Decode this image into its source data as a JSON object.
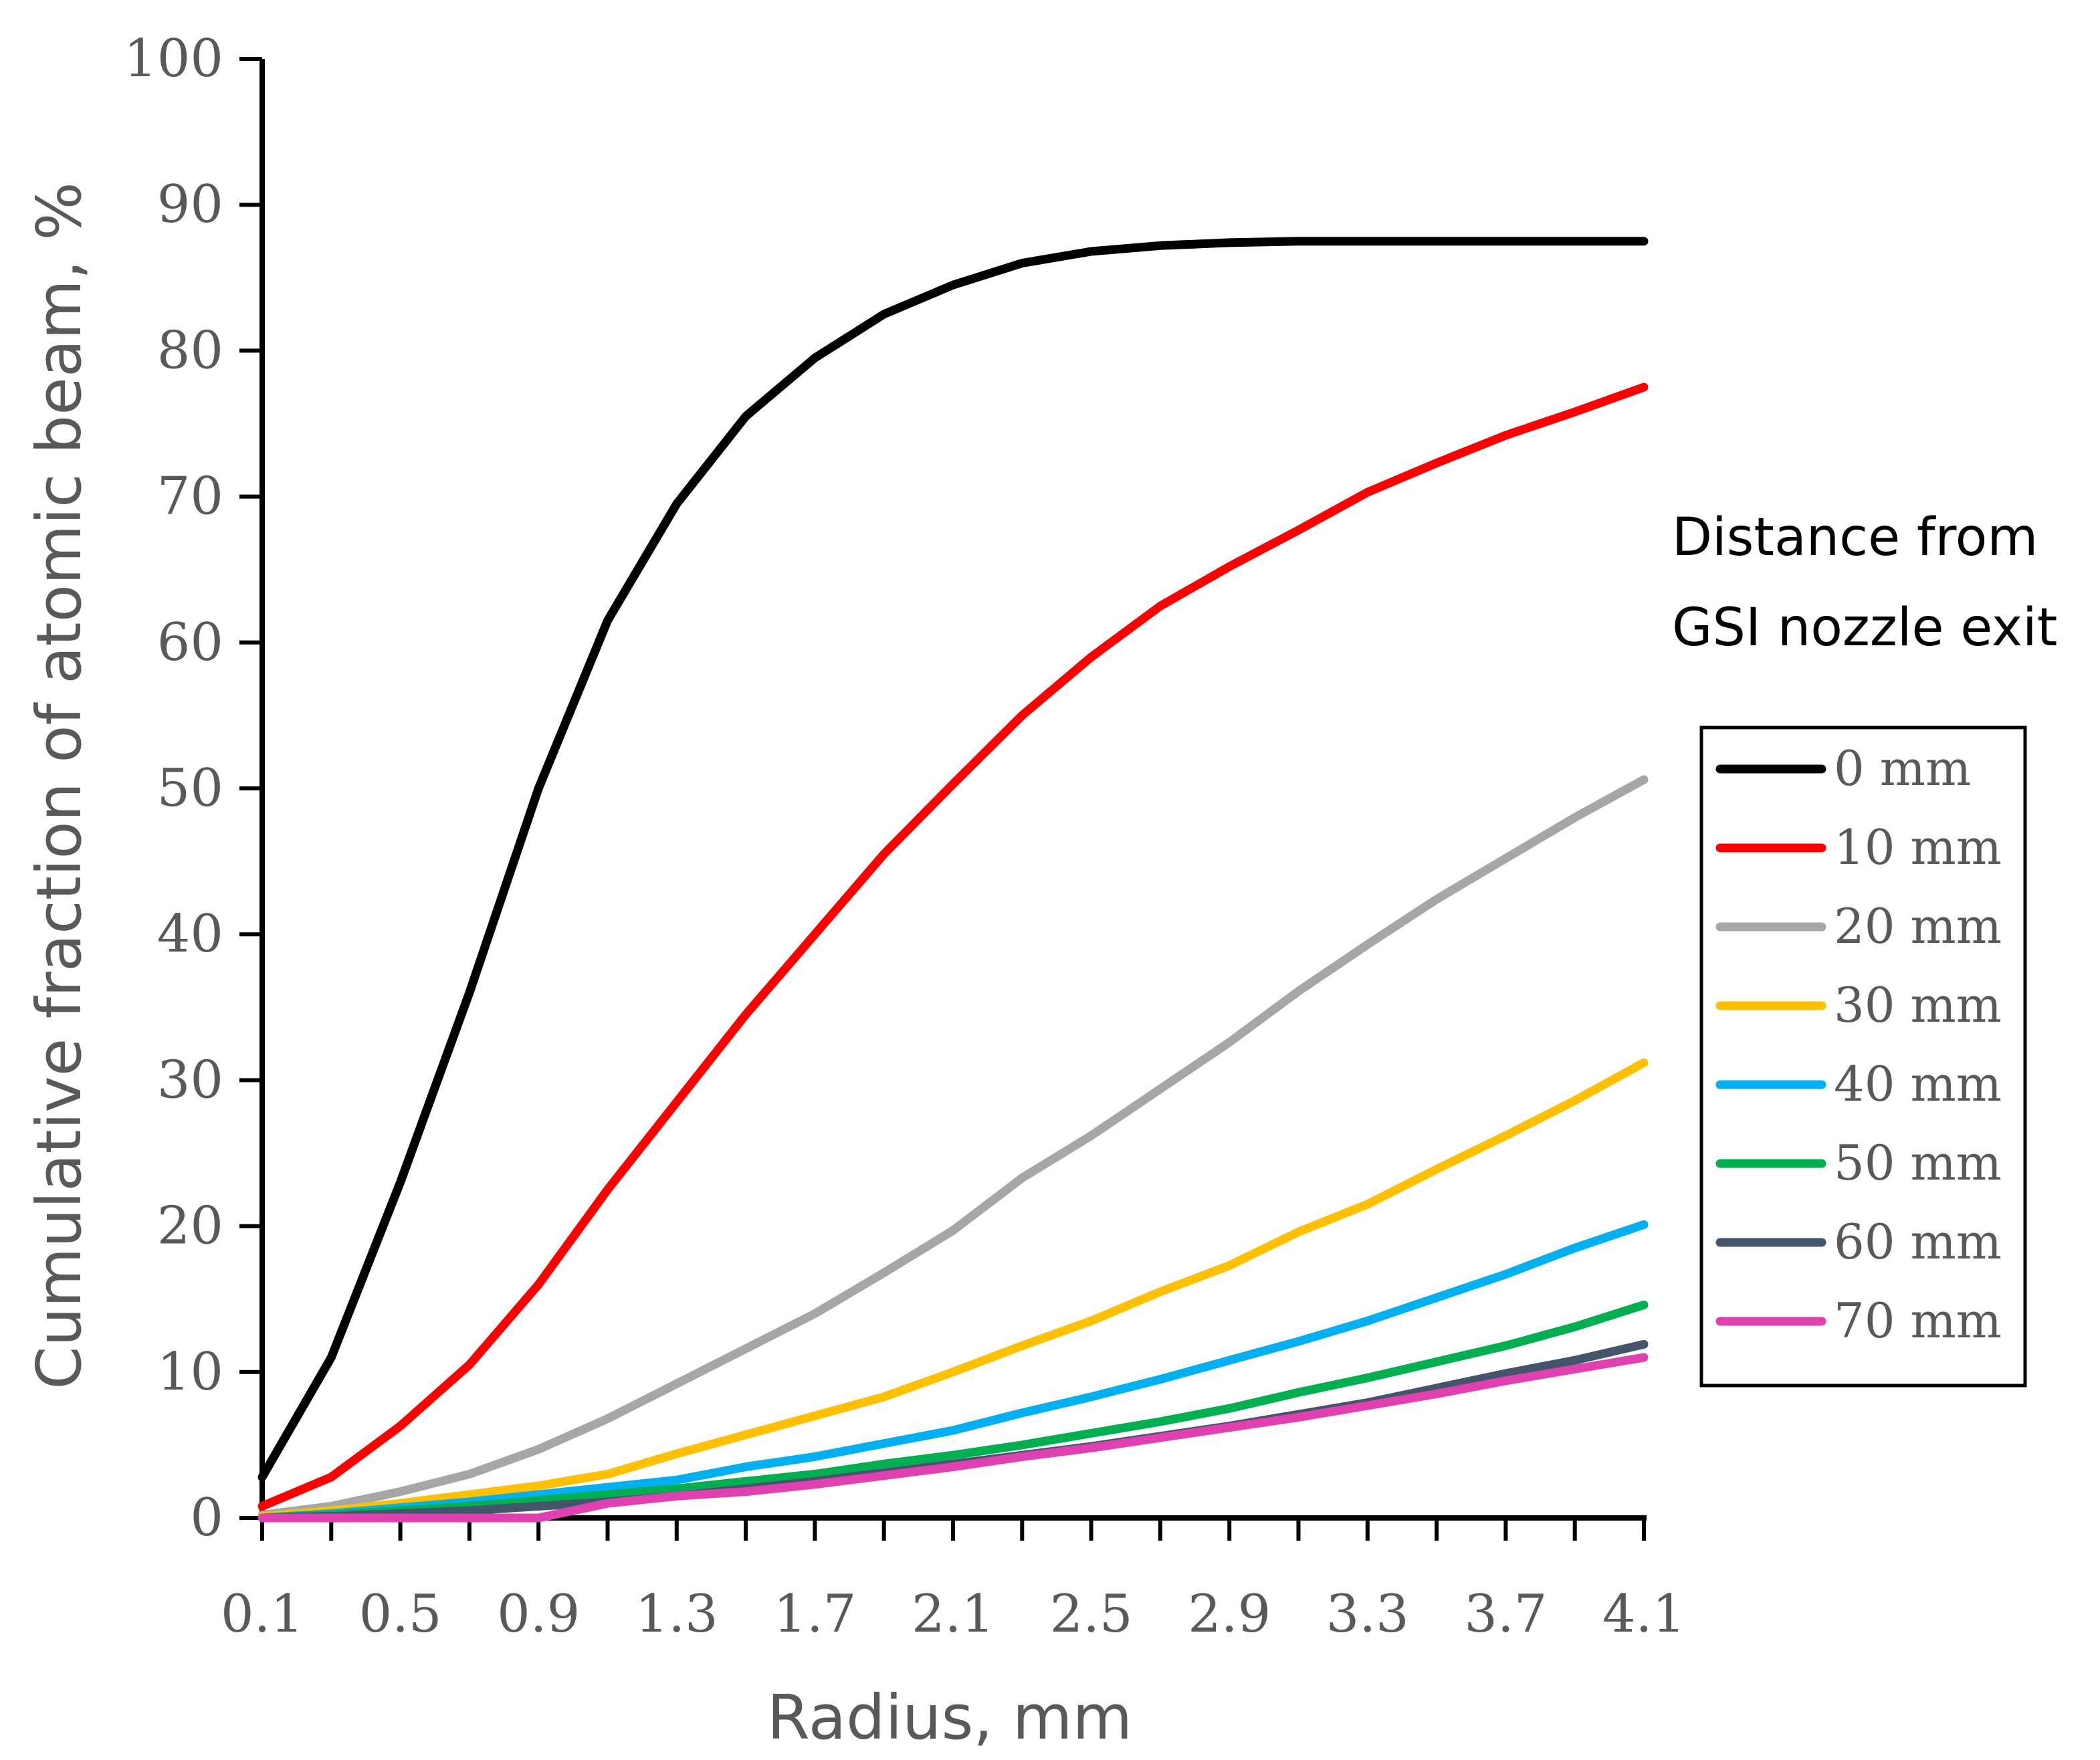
{
  "chart_data": {
    "type": "line",
    "title": "",
    "xlabel": "Radius,  mm",
    "ylabel": "Cumulative fraction of atomic beam,  %",
    "xlim": [
      0.1,
      4.1
    ],
    "ylim": [
      0,
      100
    ],
    "xticks": [
      0.1,
      0.5,
      0.9,
      1.3,
      1.7,
      2.1,
      2.5,
      2.9,
      3.3,
      3.7,
      4.1
    ],
    "xtick_labels": [
      "0.1",
      "0.5",
      "0.9",
      "1.3",
      "1.7",
      "2.1",
      "2.5",
      "2.9",
      "3.3",
      "3.7",
      "4.1"
    ],
    "yticks": [
      0,
      10,
      20,
      30,
      40,
      50,
      60,
      70,
      80,
      90,
      100
    ],
    "ytick_labels": [
      "0",
      "10",
      "20",
      "30",
      "40",
      "50",
      "60",
      "70",
      "80",
      "90",
      "100"
    ],
    "grid": false,
    "legend_title_lines": [
      "Distance from",
      "GSI nozzle exit"
    ],
    "legend_position": "right",
    "x": [
      0.1,
      0.3,
      0.5,
      0.7,
      0.9,
      1.1,
      1.3,
      1.5,
      1.7,
      1.9,
      2.1,
      2.3,
      2.5,
      2.7,
      2.9,
      3.1,
      3.3,
      3.5,
      3.7,
      3.9,
      4.1
    ],
    "series": [
      {
        "name": "0 mm",
        "color": "#000000",
        "values": [
          2.8,
          11,
          23,
          36,
          50,
          61.5,
          69.5,
          75.5,
          79.5,
          82.5,
          84.5,
          86,
          86.8,
          87.2,
          87.4,
          87.5,
          87.5,
          87.5,
          87.5,
          87.5,
          87.5
        ]
      },
      {
        "name": "10 mm",
        "color": "#ff0000",
        "values": [
          0.8,
          2.8,
          6.3,
          10.5,
          16,
          22.5,
          28.5,
          34.5,
          40,
          45.5,
          50.3,
          55,
          59,
          62.5,
          65.2,
          67.7,
          70.3,
          72.3,
          74.2,
          75.8,
          77.5
        ]
      },
      {
        "name": "20 mm",
        "color": "#a6a6a6",
        "values": [
          0.2,
          0.8,
          1.8,
          3.0,
          4.7,
          6.8,
          9.2,
          11.6,
          14.0,
          16.8,
          19.7,
          23.3,
          26.2,
          29.4,
          32.6,
          36.1,
          39.3,
          42.4,
          45.2,
          48.0,
          50.6
        ]
      },
      {
        "name": "30 mm",
        "color": "#ffc000",
        "values": [
          0.1,
          0.5,
          1.0,
          1.6,
          2.2,
          3.0,
          4.4,
          5.7,
          7.0,
          8.3,
          10.0,
          11.8,
          13.5,
          15.5,
          17.3,
          19.6,
          21.5,
          23.9,
          26.2,
          28.6,
          31.2
        ]
      },
      {
        "name": "40 mm",
        "color": "#00b0f0",
        "values": [
          0.0,
          0.3,
          0.7,
          1.1,
          1.6,
          2.1,
          2.6,
          3.5,
          4.2,
          5.1,
          6.0,
          7.2,
          8.3,
          9.5,
          10.8,
          12.1,
          13.5,
          15.1,
          16.7,
          18.5,
          20.1
        ]
      },
      {
        "name": "50 mm",
        "color": "#00b050",
        "values": [
          0.0,
          0.2,
          0.5,
          0.8,
          1.2,
          1.6,
          2.0,
          2.5,
          3.0,
          3.7,
          4.3,
          5.0,
          5.8,
          6.6,
          7.5,
          8.6,
          9.6,
          10.7,
          11.8,
          13.1,
          14.6
        ]
      },
      {
        "name": "60 mm",
        "color": "#44546a",
        "values": [
          0.0,
          0.1,
          0.3,
          0.5,
          0.8,
          1.1,
          1.5,
          2.0,
          2.5,
          3.1,
          3.7,
          4.3,
          4.9,
          5.6,
          6.3,
          7.1,
          7.9,
          8.9,
          9.9,
          10.8,
          11.9
        ]
      },
      {
        "name": "70 mm",
        "color": "#e040b0",
        "values": [
          0.0,
          0.0,
          0.0,
          0.0,
          0.0,
          1.0,
          1.5,
          1.8,
          2.3,
          2.9,
          3.5,
          4.2,
          4.8,
          5.5,
          6.2,
          6.9,
          7.7,
          8.5,
          9.4,
          10.2,
          11.0
        ]
      }
    ]
  }
}
